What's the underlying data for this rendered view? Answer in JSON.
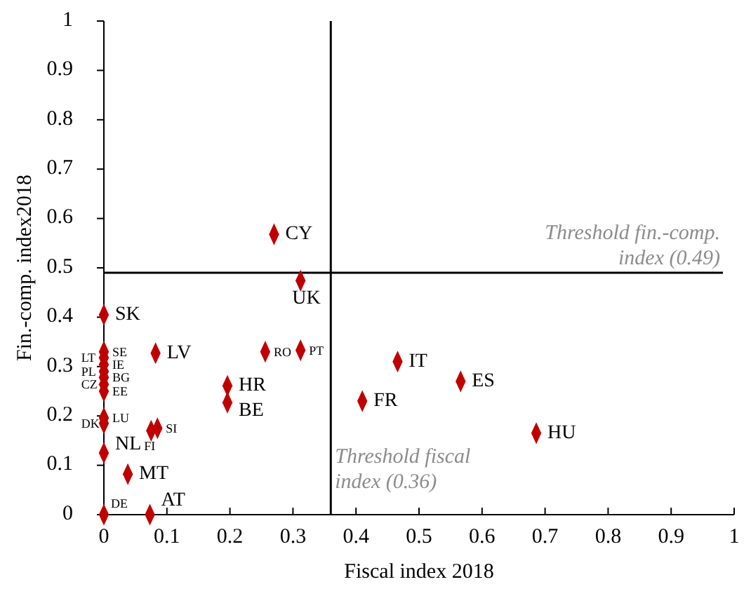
{
  "chart_data": {
    "type": "scatter",
    "xlabel": "Fiscal index 2018",
    "ylabel": "Fin.-comp. index2018",
    "xlim": [
      0,
      1
    ],
    "ylim": [
      0,
      1
    ],
    "xticks": [
      0,
      0.1,
      0.2,
      0.3,
      0.4,
      0.5,
      0.6,
      0.7,
      0.8,
      0.9,
      1
    ],
    "yticks": [
      0,
      0.1,
      0.2,
      0.3,
      0.4,
      0.5,
      0.6,
      0.7,
      0.8,
      0.9,
      1
    ],
    "marker": "diamond",
    "grid": false,
    "series": [
      {
        "color": "#c00000",
        "x": [
          0,
          0,
          0,
          0,
          0,
          0,
          0,
          0,
          0,
          0,
          0,
          0,
          0.038,
          0.073,
          0.082,
          0.075,
          0.085,
          0.196,
          0.196,
          0.256,
          0.312,
          0.312,
          0.27,
          0.41,
          0.466,
          0.566,
          0.686
        ],
        "values": [
          0.405,
          0.33,
          0.318,
          0.304,
          0.29,
          0.278,
          0.264,
          0.25,
          0.196,
          0.185,
          0.125,
          0,
          0.082,
          0,
          0.327,
          0.17,
          0.175,
          0.261,
          0.227,
          0.33,
          0.333,
          0.474,
          0.568,
          0.23,
          0.31,
          0.27,
          0.165
        ],
        "value_labels": [
          "SK",
          "SE",
          "LT",
          "IE",
          "PL",
          "BG",
          "CZ",
          "EE",
          "LU",
          "DK",
          "NL",
          "DE",
          "MT",
          "AT",
          "LV",
          "FI",
          "SI",
          "HR",
          "BE",
          "RO",
          "PT",
          "UK",
          "CY",
          "FR",
          "IT",
          "ES",
          "HU"
        ]
      }
    ],
    "ref_lines": [
      {
        "axis": "x",
        "value": 0.36,
        "label": "Threshold fiscal\nindex (0.36)",
        "color": "#000000"
      },
      {
        "axis": "y",
        "value": 0.49,
        "label": "Threshold fin.-comp.\nindex (0.49)",
        "color": "#000000"
      }
    ]
  }
}
